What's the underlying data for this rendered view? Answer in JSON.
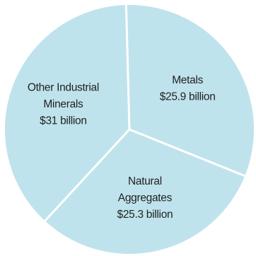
{
  "chart_data": {
    "type": "pie",
    "title": "",
    "slices": [
      {
        "label_lines": [
          "Metals",
          "$25.9 billion"
        ],
        "value": 25.9,
        "color": "#bfe3ec"
      },
      {
        "label_lines": [
          "Natural",
          "Aggregates",
          "$25.3 billion"
        ],
        "value": 25.3,
        "color": "#bfe3ec"
      },
      {
        "label_lines": [
          "Other Industrial",
          "Minerals",
          "$31 billion"
        ],
        "value": 31,
        "color": "#bfe3ec"
      }
    ],
    "separator_color": "#ffffff",
    "start_angle_deg": -1.5,
    "direction": "clockwise",
    "legend": "none"
  }
}
